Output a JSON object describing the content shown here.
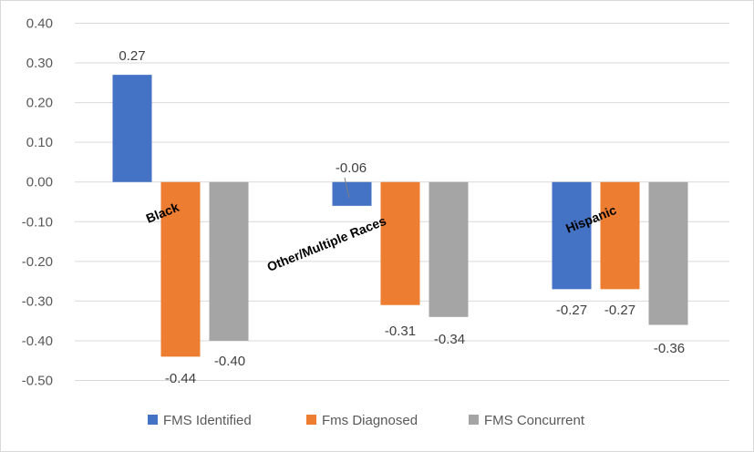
{
  "chart_data": {
    "type": "bar",
    "categories": [
      "Black",
      "Other/Multiple Races",
      "Hispanic"
    ],
    "series": [
      {
        "name": "FMS Identified",
        "color": "#4472c4",
        "values": [
          0.27,
          -0.06,
          -0.27
        ]
      },
      {
        "name": "Fms Diagnosed",
        "color": "#ed7d31",
        "values": [
          -0.44,
          -0.31,
          -0.27
        ]
      },
      {
        "name": "FMS Concurrent",
        "color": "#a5a5a5",
        "values": [
          -0.4,
          -0.34,
          -0.36
        ]
      }
    ],
    "data_labels": [
      [
        "0.27",
        "-0.06",
        "-0.27"
      ],
      [
        "-0.44",
        "-0.31",
        "-0.27"
      ],
      [
        "-0.40",
        "-0.34",
        "-0.36"
      ]
    ],
    "y_ticks": [
      "0.40",
      "0.30",
      "0.20",
      "0.10",
      "0.00",
      "-0.10",
      "-0.20",
      "-0.30",
      "-0.40",
      "-0.50"
    ],
    "ylim": [
      -0.5,
      0.4
    ],
    "grid": true,
    "legend_position": "bottom",
    "title": "",
    "xlabel": "",
    "ylabel": ""
  }
}
